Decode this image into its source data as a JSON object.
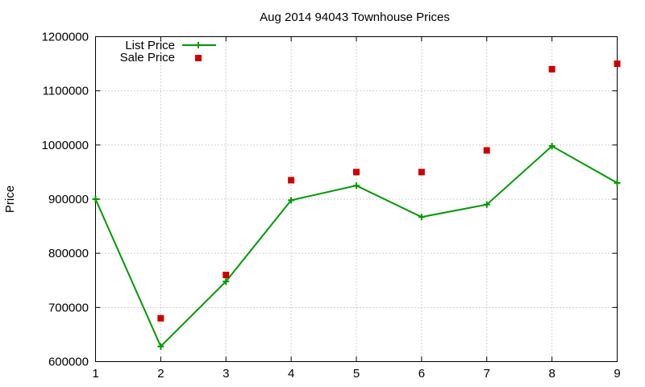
{
  "chart_data": {
    "type": "line",
    "title": "Aug 2014 94043 Townhouse Prices",
    "xlabel": "",
    "ylabel": "Price",
    "xlim": [
      1,
      9
    ],
    "ylim": [
      600000,
      1200000
    ],
    "x_ticks": [
      1,
      2,
      3,
      4,
      5,
      6,
      7,
      8,
      9
    ],
    "y_ticks": [
      600000,
      700000,
      800000,
      900000,
      1000000,
      1100000,
      1200000
    ],
    "grid": true,
    "legend_position": "top-left",
    "series": [
      {
        "name": "List Price",
        "style": "line+cross",
        "color": "#009900",
        "points": [
          [
            1,
            900000
          ],
          [
            2,
            628000
          ],
          [
            3,
            748000
          ],
          [
            4,
            898000
          ],
          [
            5,
            925000
          ],
          [
            6,
            867000
          ],
          [
            7,
            890000
          ],
          [
            8,
            998000
          ],
          [
            9,
            930000
          ]
        ]
      },
      {
        "name": "Sale Price",
        "style": "square",
        "color": "#cc0000",
        "points": [
          [
            2,
            680000
          ],
          [
            3,
            760000
          ],
          [
            4,
            935000
          ],
          [
            5,
            950000
          ],
          [
            6,
            950000
          ],
          [
            7,
            990000
          ],
          [
            8,
            1140000
          ],
          [
            9,
            1150000
          ]
        ]
      }
    ]
  }
}
